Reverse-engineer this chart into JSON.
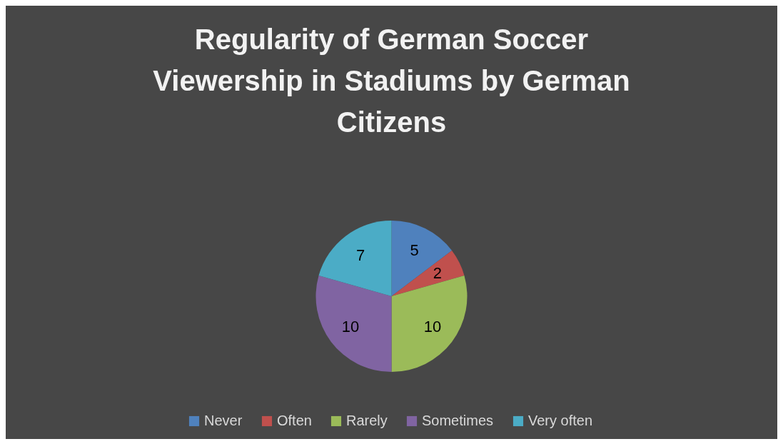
{
  "chart_data": {
    "type": "pie",
    "title": "Regularity of German Soccer Viewership in Stadiums by German Citizens",
    "categories": [
      "Never",
      "Often",
      "Rarely",
      "Sometimes",
      "Very often"
    ],
    "values": [
      5,
      2,
      10,
      10,
      7
    ],
    "colors": [
      "#4f81bd",
      "#c0504d",
      "#9bbb59",
      "#8064a2",
      "#4bacc6"
    ],
    "data_labels": true,
    "legend": "bottom"
  }
}
